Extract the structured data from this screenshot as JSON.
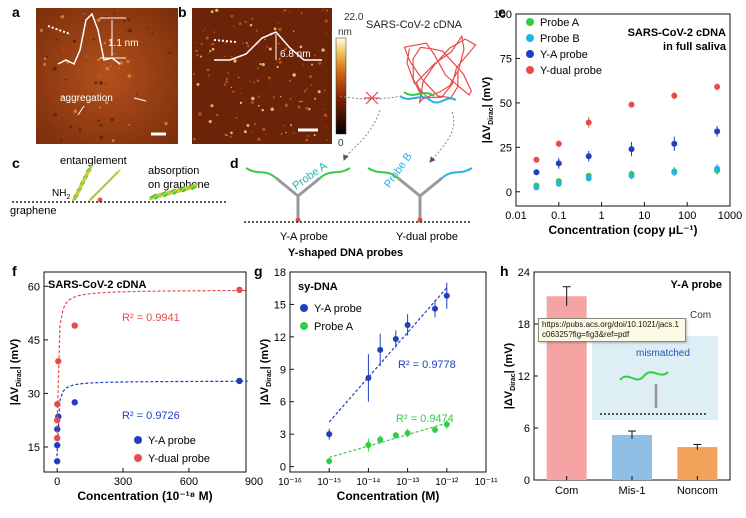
{
  "panel_letters": [
    "a",
    "b",
    "c",
    "d",
    "e",
    "f",
    "g",
    "h"
  ],
  "afm_a": {
    "height_label": "1.1 nm",
    "aggregation_label": "aggregation"
  },
  "afm_b": {
    "height_label": "6.8 nm",
    "colorbar_max": "22.0",
    "colorbar_unit": "nm",
    "colorbar_min": "0"
  },
  "schematic": {
    "cdna_label": "SARS-CoV-2 cDNA",
    "entanglement": "entanglement",
    "absorption_line1": "absorption",
    "absorption_line2": "on graphene",
    "nh2": "NH",
    "nh2_sub": "2",
    "graphene": "graphene",
    "probe_a": "Probe A",
    "probe_b": "Probe B",
    "ya_probe": "Y-A probe",
    "ydual_probe": "Y-dual probe",
    "caption": "Y-shaped DNA probes"
  },
  "colors": {
    "green": "#33cc44",
    "lightblue": "#22b4e6",
    "blue": "#1f3fbf",
    "red": "#e84b4b",
    "bar_com": "#f6a3a3",
    "bar_mis": "#8fbfe6",
    "bar_noncom": "#f2a25a"
  },
  "tooltip": "https://pubs.acs.org/doi/10.1021/jacs.1c06325?fig=fig3&ref=pdf",
  "chart_data": [
    {
      "id": "e",
      "type": "scatter",
      "title": "SARS-CoV-2 cDNA",
      "subtitle": "in full saliva",
      "xlabel": "Concentration (copy μL⁻¹)",
      "ylabel": "|ΔV",
      "ylabel_sub": "Dirac",
      "ylabel_unit": "| (mV)",
      "xscale": "log",
      "xlim": [
        0.01,
        1000
      ],
      "ylim": [
        -8,
        100
      ],
      "xticks": [
        "0.01",
        "0.1",
        "1",
        "10",
        "100",
        "1000"
      ],
      "yticks": [
        "0",
        "25",
        "50",
        "75",
        "100"
      ],
      "x": [
        0.03,
        0.1,
        0.5,
        5,
        50,
        500
      ],
      "legend_position": "top-left",
      "series": [
        {
          "name": "Probe A",
          "color": "#33cc44",
          "values": [
            3.5,
            6,
            9,
            10,
            11.5,
            12
          ],
          "err": [
            1,
            1.2,
            1.5,
            2,
            2.5,
            2.5
          ]
        },
        {
          "name": "Probe B",
          "color": "#22b4e6",
          "values": [
            2.5,
            4.5,
            7.5,
            9,
            11,
            13
          ],
          "err": [
            1,
            1.2,
            1.5,
            2,
            2,
            2.5
          ]
        },
        {
          "name": "Y-A probe",
          "color": "#1f3fbf",
          "values": [
            11,
            16,
            20,
            24,
            27,
            34
          ],
          "err": [
            1.5,
            3,
            3,
            4,
            4,
            3
          ]
        },
        {
          "name": "Y-dual probe",
          "color": "#e84b4b",
          "values": [
            18,
            27,
            39,
            49,
            54,
            59
          ],
          "err": [
            1.5,
            2,
            3,
            1,
            2,
            2
          ]
        }
      ]
    },
    {
      "id": "f",
      "type": "scatter",
      "title": "SARS-CoV-2 cDNA",
      "xlabel": "Concentration (10⁻¹⁸ M)",
      "ylabel": "|ΔV",
      "ylabel_sub": "Dirac",
      "ylabel_unit": "| (mV)",
      "xlim": [
        -60,
        860
      ],
      "ylim": [
        8,
        64
      ],
      "xticks": [
        0,
        300,
        600,
        900
      ],
      "yticks": [
        15,
        30,
        45,
        60
      ],
      "legend_position": "bottom-right",
      "series": [
        {
          "name": "Y-A probe",
          "color": "#1f3fbf",
          "r2": "R² = 0.9726",
          "x": [
            0.03,
            0.1,
            0.5,
            5,
            80,
            830
          ],
          "values": [
            11,
            15.5,
            20,
            23.5,
            27.5,
            33.5
          ]
        },
        {
          "name": "Y-dual probe",
          "color": "#e84b4b",
          "r2": "R² = 0.9941",
          "x": [
            0.03,
            0.1,
            0.5,
            5,
            80,
            830
          ],
          "values": [
            17.5,
            22.5,
            27,
            39,
            49,
            59
          ]
        }
      ]
    },
    {
      "id": "g",
      "type": "scatter",
      "title": "sy-DNA",
      "xlabel": "Concentration (M)",
      "ylabel": "|ΔV",
      "ylabel_sub": "Dirac",
      "ylabel_unit": "| (mV)",
      "xscale": "log",
      "xlim": [
        -16,
        -11
      ],
      "ylim": [
        -0.5,
        18
      ],
      "xticks": [
        "10⁻¹⁶",
        "10⁻¹⁵",
        "10⁻¹⁴",
        "10⁻¹³",
        "10⁻¹²",
        "10⁻¹¹"
      ],
      "yticks": [
        0,
        3,
        6,
        9,
        12,
        15,
        18
      ],
      "x": [
        "1e-15",
        "1e-14",
        "2e-14",
        "5e-14",
        "1e-13",
        "5e-13",
        "1e-12"
      ],
      "legend_position": "top-left",
      "series": [
        {
          "name": "Y-A probe",
          "color": "#1f3fbf",
          "r2": "R² = 0.9778",
          "values": [
            3,
            8.2,
            10.8,
            11.8,
            13.1,
            14.6,
            15.8
          ],
          "err": [
            0.5,
            2.2,
            1.5,
            0.8,
            1.0,
            0.8,
            1.2
          ]
        },
        {
          "name": "Probe A",
          "color": "#33cc44",
          "r2": "R² = 0.9474",
          "values": [
            0.5,
            2.0,
            2.5,
            2.9,
            3.1,
            3.4,
            3.9
          ],
          "err": [
            0.3,
            0.6,
            0.4,
            0.3,
            0.4,
            0.3,
            0.4
          ]
        }
      ]
    },
    {
      "id": "h",
      "type": "bar",
      "title": "Y-A probe",
      "ylabel": "|ΔV",
      "ylabel_sub": "Dirac",
      "ylabel_unit": "| (mV)",
      "categories": [
        "Com",
        "Mis-1",
        "Noncom"
      ],
      "values": [
        21.2,
        5.2,
        3.8
      ],
      "err": [
        1.1,
        0.45,
        0.3
      ],
      "colors": [
        "#f6a3a3",
        "#8fbfe6",
        "#f2a25a"
      ],
      "ylim": [
        0,
        24
      ],
      "yticks": [
        0,
        6,
        12,
        18,
        24
      ],
      "inset_label": "mismatched",
      "partial_label": "Com"
    }
  ]
}
